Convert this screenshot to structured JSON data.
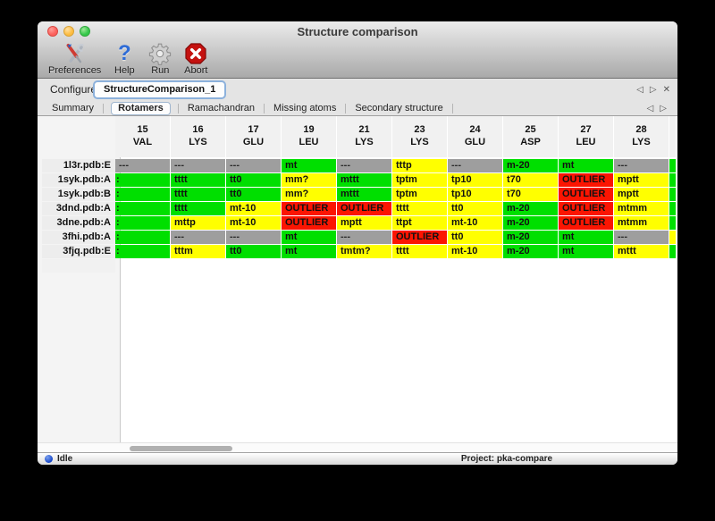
{
  "window": {
    "title": "Structure comparison"
  },
  "traffic_lights": [
    "close",
    "minimize",
    "zoom"
  ],
  "toolbar": {
    "buttons": [
      {
        "label": "Preferences",
        "icon": "preferences-tools-icon"
      },
      {
        "label": "Help",
        "icon": "help-question-icon"
      },
      {
        "label": "Run",
        "icon": "run-gear-icon"
      },
      {
        "label": "Abort",
        "icon": "abort-stop-icon"
      }
    ]
  },
  "configure": {
    "label": "Configure",
    "selected_config": "StructureComparison_1"
  },
  "config_nav": {
    "left": "◁",
    "right": "▷",
    "close": "✕"
  },
  "tab_nav": {
    "left": "◁",
    "right": "▷"
  },
  "tabs": [
    {
      "label": "Summary",
      "selected": false
    },
    {
      "label": "Rotamers",
      "selected": true
    },
    {
      "label": "Ramachandran",
      "selected": false
    },
    {
      "label": "Missing atoms",
      "selected": false
    },
    {
      "label": "Secondary structure",
      "selected": false
    }
  ],
  "colors": {
    "green": "#00df00",
    "yellow": "#ffff00",
    "red": "#fb1502",
    "gray": "#9e9e9e"
  },
  "table": {
    "columns": [
      {
        "num": "15",
        "res": "VAL"
      },
      {
        "num": "16",
        "res": "LYS"
      },
      {
        "num": "17",
        "res": "GLU"
      },
      {
        "num": "19",
        "res": "LEU"
      },
      {
        "num": "21",
        "res": "LYS"
      },
      {
        "num": "23",
        "res": "LYS"
      },
      {
        "num": "24",
        "res": "GLU"
      },
      {
        "num": "25",
        "res": "ASP"
      },
      {
        "num": "27",
        "res": "LEU"
      },
      {
        "num": "28",
        "res": "LYS"
      }
    ],
    "rows": [
      {
        "label": "1l3r.pdb:E",
        "partial": "green",
        "cells": [
          {
            "t": "---",
            "c": "gray"
          },
          {
            "t": "---",
            "c": "gray"
          },
          {
            "t": "---",
            "c": "gray"
          },
          {
            "t": "mt",
            "c": "green"
          },
          {
            "t": "---",
            "c": "gray"
          },
          {
            "t": "tttp",
            "c": "yellow"
          },
          {
            "t": "---",
            "c": "gray"
          },
          {
            "t": "m-20",
            "c": "green"
          },
          {
            "t": "mt",
            "c": "green"
          },
          {
            "t": "---",
            "c": "gray"
          }
        ]
      },
      {
        "label": "1syk.pdb:A",
        "partial": "green",
        "cells": [
          {
            "t": ":",
            "c": "green"
          },
          {
            "t": "tttt",
            "c": "green"
          },
          {
            "t": "tt0",
            "c": "green"
          },
          {
            "t": "mm?",
            "c": "yellow"
          },
          {
            "t": "mttt",
            "c": "green"
          },
          {
            "t": "tptm",
            "c": "yellow"
          },
          {
            "t": "tp10",
            "c": "yellow"
          },
          {
            "t": "t70",
            "c": "yellow"
          },
          {
            "t": "OUTLIER",
            "c": "red"
          },
          {
            "t": "mptt",
            "c": "yellow"
          }
        ]
      },
      {
        "label": "1syk.pdb:B",
        "partial": "green",
        "cells": [
          {
            "t": ":",
            "c": "green"
          },
          {
            "t": "tttt",
            "c": "green"
          },
          {
            "t": "tt0",
            "c": "green"
          },
          {
            "t": "mm?",
            "c": "yellow"
          },
          {
            "t": "mttt",
            "c": "green"
          },
          {
            "t": "tptm",
            "c": "yellow"
          },
          {
            "t": "tp10",
            "c": "yellow"
          },
          {
            "t": "t70",
            "c": "yellow"
          },
          {
            "t": "OUTLIER",
            "c": "red"
          },
          {
            "t": "mptt",
            "c": "yellow"
          }
        ]
      },
      {
        "label": "3dnd.pdb:A",
        "partial": "green",
        "cells": [
          {
            "t": ":",
            "c": "green"
          },
          {
            "t": "tttt",
            "c": "green"
          },
          {
            "t": "mt-10",
            "c": "yellow"
          },
          {
            "t": "OUTLIER",
            "c": "red"
          },
          {
            "t": "OUTLIER",
            "c": "red"
          },
          {
            "t": "tttt",
            "c": "yellow"
          },
          {
            "t": "tt0",
            "c": "yellow"
          },
          {
            "t": "m-20",
            "c": "green"
          },
          {
            "t": "OUTLIER",
            "c": "red"
          },
          {
            "t": "mtmm",
            "c": "yellow"
          }
        ]
      },
      {
        "label": "3dne.pdb:A",
        "partial": "green",
        "cells": [
          {
            "t": ":",
            "c": "green"
          },
          {
            "t": "mttp",
            "c": "yellow"
          },
          {
            "t": "mt-10",
            "c": "yellow"
          },
          {
            "t": "OUTLIER",
            "c": "red"
          },
          {
            "t": "mptt",
            "c": "yellow"
          },
          {
            "t": "ttpt",
            "c": "yellow"
          },
          {
            "t": "mt-10",
            "c": "yellow"
          },
          {
            "t": "m-20",
            "c": "green"
          },
          {
            "t": "OUTLIER",
            "c": "red"
          },
          {
            "t": "mtmm",
            "c": "yellow"
          }
        ]
      },
      {
        "label": "3fhi.pdb:A",
        "partial": "yellow",
        "cells": [
          {
            "t": ":",
            "c": "green"
          },
          {
            "t": "---",
            "c": "gray"
          },
          {
            "t": "---",
            "c": "gray"
          },
          {
            "t": "mt",
            "c": "green"
          },
          {
            "t": "---",
            "c": "gray"
          },
          {
            "t": "OUTLIER",
            "c": "red"
          },
          {
            "t": "tt0",
            "c": "yellow"
          },
          {
            "t": "m-20",
            "c": "green"
          },
          {
            "t": "mt",
            "c": "green"
          },
          {
            "t": "---",
            "c": "gray"
          }
        ]
      },
      {
        "label": "3fjq.pdb:E",
        "partial": "green",
        "cells": [
          {
            "t": ":",
            "c": "green"
          },
          {
            "t": "tttm",
            "c": "yellow"
          },
          {
            "t": "tt0",
            "c": "green"
          },
          {
            "t": "mt",
            "c": "green"
          },
          {
            "t": "tmtm?",
            "c": "yellow"
          },
          {
            "t": "tttt",
            "c": "yellow"
          },
          {
            "t": "mt-10",
            "c": "yellow"
          },
          {
            "t": "m-20",
            "c": "green"
          },
          {
            "t": "mt",
            "c": "green"
          },
          {
            "t": "mttt",
            "c": "yellow"
          }
        ]
      }
    ]
  },
  "status_bar": {
    "status": "Idle",
    "project": "Project: pka-compare"
  }
}
